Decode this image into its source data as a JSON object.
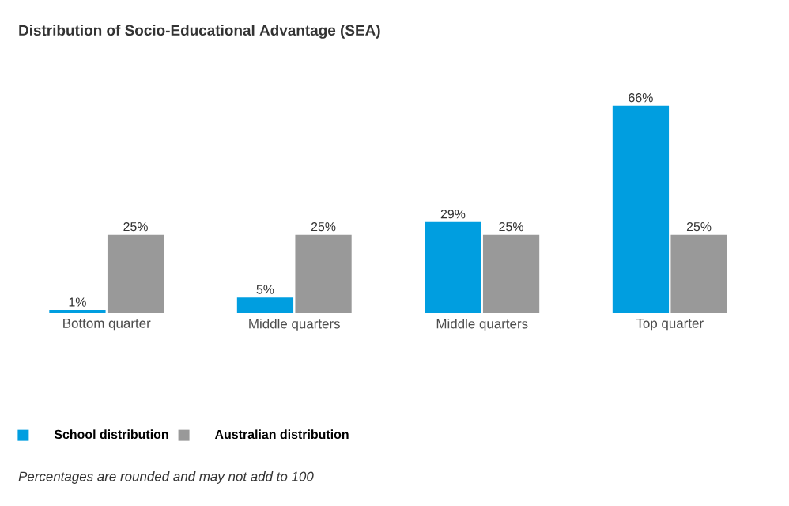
{
  "chart_data": {
    "type": "bar",
    "title": "Distribution of Socio-Educational Advantage (SEA)",
    "categories": [
      "Bottom quarter",
      "Middle quarters",
      "Middle quarters",
      "Top quarter"
    ],
    "series": [
      {
        "name": "School distribution",
        "color": "#009ee0",
        "values": [
          1,
          5,
          29,
          66
        ],
        "value_labels": [
          "1%",
          "5%",
          "29%",
          "66%"
        ]
      },
      {
        "name": "Australian distribution",
        "color": "#999999",
        "values": [
          25,
          25,
          25,
          25
        ],
        "value_labels": [
          "25%",
          "25%",
          "25%",
          "25%"
        ]
      }
    ],
    "tick_labels": "x",
    "legend": "bottom left",
    "grid": false,
    "annotations": [
      "Percentages are rounded and may not add to 100"
    ]
  }
}
